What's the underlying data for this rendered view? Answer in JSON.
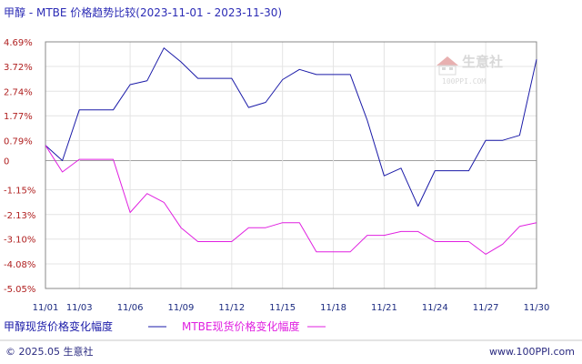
{
  "chart_data": {
    "type": "line",
    "title": "甲醇 - MTBE 价格趋势比较(2023-11-01 - 2023-11-30)",
    "ylim": [
      -5.05,
      4.69
    ],
    "ytick_values": [
      4.69,
      3.72,
      2.74,
      1.77,
      0.79,
      0,
      -1.15,
      -2.13,
      -3.1,
      -4.08,
      -5.05
    ],
    "ytick_labels": [
      "4.69%",
      "3.72%",
      "2.74%",
      "1.77%",
      "0.79%",
      "0",
      "-1.15%",
      "-2.13%",
      "-3.10%",
      "-4.08%",
      "-5.05%"
    ],
    "x_dates": [
      "11/01",
      "11/02",
      "11/03",
      "11/04",
      "11/05",
      "11/06",
      "11/07",
      "11/08",
      "11/09",
      "11/10",
      "11/11",
      "11/12",
      "11/13",
      "11/14",
      "11/15",
      "11/16",
      "11/17",
      "11/18",
      "11/19",
      "11/20",
      "11/21",
      "11/22",
      "11/23",
      "11/24",
      "11/25",
      "11/26",
      "11/27",
      "11/28",
      "11/29",
      "11/30"
    ],
    "xtick_labels": [
      "11/01",
      "11/03",
      "11/06",
      "11/09",
      "11/12",
      "11/15",
      "11/18",
      "11/21",
      "11/24",
      "11/27",
      "11/30"
    ],
    "grid": true,
    "legend_position": "bottom-left",
    "series": [
      {
        "name": "甲醇现货价格变化幅度",
        "color": "#1a1aa8",
        "values": [
          0.6,
          0.0,
          2.0,
          2.0,
          2.0,
          3.0,
          3.15,
          4.45,
          3.9,
          3.25,
          3.25,
          3.25,
          2.1,
          2.3,
          3.2,
          3.6,
          3.4,
          3.4,
          3.4,
          1.6,
          -0.6,
          -0.3,
          -1.8,
          -0.4,
          -0.4,
          -0.4,
          0.8,
          0.8,
          1.0,
          4.0
        ]
      },
      {
        "name": "MTBE现货价格变化幅度",
        "color": "#e020e0",
        "values": [
          0.6,
          -0.45,
          0.05,
          0.05,
          0.05,
          -2.05,
          -1.3,
          -1.65,
          -2.65,
          -3.2,
          -3.2,
          -3.2,
          -2.65,
          -2.65,
          -2.45,
          -2.45,
          -3.6,
          -3.6,
          -3.6,
          -2.95,
          -2.95,
          -2.8,
          -2.8,
          -3.2,
          -3.2,
          -3.2,
          -3.7,
          -3.3,
          -2.6,
          -2.45
        ]
      }
    ]
  },
  "watermark": {
    "text": "生意社",
    "url": "100PPI.COM"
  },
  "footer": {
    "left": "© 2025.05 生意社",
    "right": "www.100PPI.com"
  }
}
